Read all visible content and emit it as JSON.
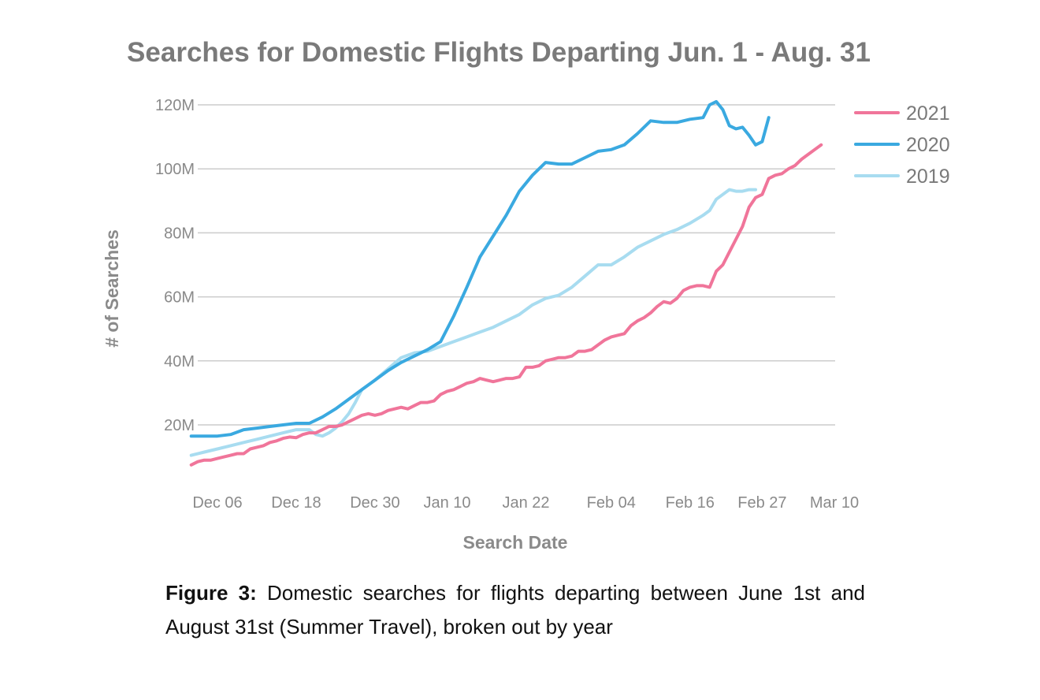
{
  "chart_data": {
    "type": "line",
    "title": "Searches for Domestic Flights Departing Jun. 1 - Aug. 31",
    "xlabel": "Search Date",
    "ylabel": "# of Searches",
    "x_tick_labels": [
      "Dec 06",
      "Dec 18",
      "Dec 30",
      "Jan 10",
      "Jan 22",
      "Feb 04",
      "Feb 16",
      "Feb 27",
      "Mar 10"
    ],
    "y_ticks": [
      20,
      40,
      60,
      80,
      100,
      120
    ],
    "y_tick_labels": [
      "20M",
      "40M",
      "60M",
      "80M",
      "100M",
      "120M"
    ],
    "ylim": [
      0,
      125
    ],
    "x_start_day": 0,
    "x_end_day": 94,
    "x_tick_days": [
      0,
      12,
      24,
      35,
      47,
      60,
      72,
      83,
      94
    ],
    "grid": true,
    "legend_position": "top-right",
    "series": [
      {
        "name": "2021",
        "color": "#f0759a",
        "x": [
          -4,
          -3,
          -2,
          -1,
          0,
          1,
          2,
          3,
          4,
          5,
          6,
          7,
          8,
          9,
          10,
          11,
          12,
          13,
          14,
          15,
          16,
          17,
          18,
          19,
          20,
          21,
          22,
          23,
          24,
          25,
          26,
          27,
          28,
          29,
          30,
          31,
          32,
          33,
          34,
          35,
          36,
          37,
          38,
          39,
          40,
          41,
          42,
          43,
          44,
          45,
          46,
          47,
          48,
          49,
          50,
          51,
          52,
          53,
          54,
          55,
          56,
          57,
          58,
          59,
          60,
          61,
          62,
          63,
          64,
          65,
          66,
          67,
          68,
          69,
          70,
          71,
          72,
          73,
          74,
          75,
          76,
          77,
          78,
          79,
          80,
          81,
          82,
          83,
          84,
          85,
          86,
          87,
          88,
          89,
          90,
          91,
          92
        ],
        "values": [
          7.5,
          8.5,
          9.0,
          9.0,
          9.5,
          10.0,
          10.5,
          11.0,
          11.0,
          12.5,
          13.0,
          13.5,
          14.5,
          15.0,
          15.8,
          16.2,
          16.0,
          17.0,
          17.5,
          17.5,
          18.5,
          19.5,
          19.5,
          20.0,
          21.0,
          22.0,
          23.0,
          23.5,
          23.0,
          23.5,
          24.5,
          25.0,
          25.5,
          25.0,
          26.0,
          27.0,
          27.0,
          27.5,
          29.5,
          30.5,
          31.0,
          32.0,
          33.0,
          33.5,
          34.5,
          34.0,
          33.5,
          34.0,
          34.5,
          34.5,
          35.0,
          38.0,
          38.0,
          38.5,
          40.0,
          40.5,
          41.0,
          41.0,
          41.5,
          43.0,
          43.0,
          43.5,
          45.0,
          46.5,
          47.5,
          48.0,
          48.5,
          51.0,
          52.5,
          53.5,
          55.0,
          57.0,
          58.5,
          58.0,
          59.5,
          62.0,
          63.0,
          63.5,
          63.5,
          63.0,
          68.0,
          70.0,
          74.0,
          78.0,
          82.0,
          88.0,
          91.0,
          92.0,
          97.0,
          98.0,
          98.5,
          100.0,
          101.0,
          103.0,
          104.5,
          106.0,
          107.5
        ]
      },
      {
        "name": "2020",
        "color": "#3aa9e0",
        "x": [
          -4,
          -2,
          0,
          2,
          4,
          6,
          8,
          10,
          12,
          14,
          16,
          18,
          20,
          22,
          24,
          26,
          28,
          30,
          32,
          34,
          36,
          38,
          40,
          42,
          44,
          46,
          48,
          50,
          52,
          54,
          56,
          58,
          60,
          62,
          64,
          66,
          68,
          70,
          72,
          74,
          75,
          76,
          77,
          78,
          79,
          80,
          81,
          82,
          83,
          84,
          85,
          86,
          87,
          88,
          89,
          90
        ],
        "values": [
          16.5,
          16.5,
          16.5,
          17.0,
          18.5,
          19.0,
          19.5,
          20.0,
          20.5,
          20.5,
          22.5,
          25.0,
          28.0,
          31.0,
          34.0,
          37.0,
          39.5,
          41.5,
          43.5,
          46.0,
          54.0,
          63.0,
          72.5,
          79.0,
          85.5,
          93.0,
          98.0,
          102.0,
          101.5,
          101.5,
          103.5,
          105.5,
          106.0,
          107.5,
          111.0,
          115.0,
          114.5,
          114.5,
          115.5,
          116.0,
          120.0,
          121.0,
          118.5,
          113.5,
          112.5,
          113.0,
          110.5,
          107.5,
          108.5,
          116.0,
          null,
          null,
          null,
          null,
          null,
          null
        ]
      },
      {
        "name": "2019",
        "color": "#a8dcf0",
        "x": [
          -4,
          -2,
          0,
          2,
          4,
          6,
          8,
          10,
          12,
          14,
          15,
          16,
          17,
          18,
          19,
          20,
          21,
          22,
          24,
          26,
          28,
          30,
          32,
          34,
          36,
          38,
          40,
          42,
          44,
          46,
          48,
          50,
          52,
          54,
          56,
          58,
          60,
          62,
          64,
          66,
          68,
          70,
          72,
          74,
          75,
          76,
          77,
          78,
          79,
          80,
          81,
          82,
          83,
          84,
          85,
          86
        ],
        "values": [
          10.5,
          11.5,
          12.5,
          13.5,
          14.5,
          15.5,
          16.5,
          17.5,
          18.5,
          18.5,
          17.0,
          16.5,
          17.5,
          19.0,
          21.0,
          23.5,
          27.0,
          31.0,
          34.0,
          37.5,
          41.0,
          42.5,
          43.0,
          44.5,
          46.0,
          47.5,
          49.0,
          50.5,
          52.5,
          54.5,
          57.5,
          59.5,
          60.5,
          63.0,
          66.5,
          70.0,
          70.0,
          72.5,
          75.5,
          77.5,
          79.5,
          81.0,
          83.0,
          85.5,
          87.0,
          90.5,
          92.0,
          93.5,
          93.0,
          93.0,
          93.5,
          93.5,
          null,
          null,
          null,
          null
        ]
      }
    ]
  },
  "caption": {
    "label": "Figure 3:",
    "text": " Domestic searches for flights departing between June 1st and August 31st (Summer Travel), broken out by year"
  }
}
